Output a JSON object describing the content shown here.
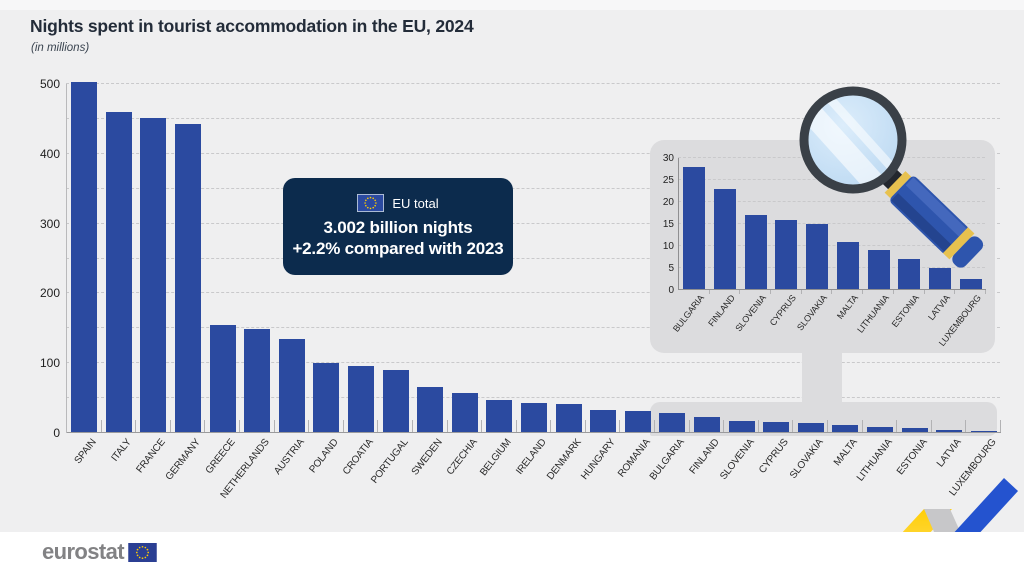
{
  "header": {
    "title": "Nights spent in tourist accommodation in the EU, 2024",
    "subtitle": "(in millions)"
  },
  "eu_total": {
    "label": "EU total",
    "value_line": "3.002 billion nights",
    "change_line": "+2.2% compared with 2023"
  },
  "chart_data": [
    {
      "id": "main",
      "type": "bar",
      "title": "Nights spent in tourist accommodation in the EU, 2024",
      "unit": "millions",
      "categories": [
        "SPAIN",
        "ITALY",
        "FRANCE",
        "GERMANY",
        "GREECE",
        "NETHERLANDS",
        "AUSTRIA",
        "POLAND",
        "CROATIA",
        "PORTUGAL",
        "SWEDEN",
        "CZECHIA",
        "BELGIUM",
        "IRELAND",
        "DENMARK",
        "HUNGARY",
        "ROMANIA",
        "BULGARIA",
        "FINLAND",
        "SLOVENIA",
        "CYPRUS",
        "SLOVAKIA",
        "MALTA",
        "LITHUANIA",
        "ESTONIA",
        "LATVIA",
        "LUXEMBOURG"
      ],
      "values": [
        503,
        460,
        452,
        443,
        155,
        149,
        134,
        100,
        96,
        90,
        66,
        58,
        47,
        43,
        41,
        33,
        31,
        28,
        23,
        17,
        16,
        15,
        11,
        9,
        7,
        5,
        2.4
      ],
      "xlabel": "",
      "ylabel": "",
      "ylim": [
        0,
        500
      ],
      "yticks": [
        0,
        100,
        200,
        300,
        400,
        500
      ],
      "grid_step": 50,
      "grid": "dashed horizontal"
    },
    {
      "id": "inset",
      "type": "bar",
      "title": "Magnified view of the smallest values",
      "unit": "millions",
      "categories": [
        "BULGARIA",
        "FINLAND",
        "SLOVENIA",
        "CYPRUS",
        "SLOVAKIA",
        "MALTA",
        "LITHUANIA",
        "ESTONIA",
        "LATVIA",
        "LUXEMBOURG"
      ],
      "values": [
        28,
        23,
        17,
        16,
        15,
        11,
        9,
        7,
        5,
        2.4
      ],
      "xlabel": "",
      "ylabel": "",
      "ylim": [
        0,
        30
      ],
      "yticks": [
        0,
        5,
        10,
        15,
        20,
        25,
        30
      ],
      "grid_step": 5,
      "grid": "dashed horizontal"
    }
  ],
  "footer": {
    "logo_text": "eurostat"
  },
  "colors": {
    "background": "#efeff0",
    "bar": "#2b4aa0",
    "panel_gray": "#dcdcde",
    "callout_bg": "#0c2b4d",
    "callout_text": "#ffffff",
    "title_text": "#232c39",
    "gridline": "#c9c9cb",
    "flag_blue": "#003399",
    "star_yellow": "#ffcc00",
    "ribbon_yellow": "#ffce07",
    "ribbon_blue": "#2453cf",
    "ribbon_gray": "#c7c7c9",
    "logo_gray": "#828284"
  }
}
